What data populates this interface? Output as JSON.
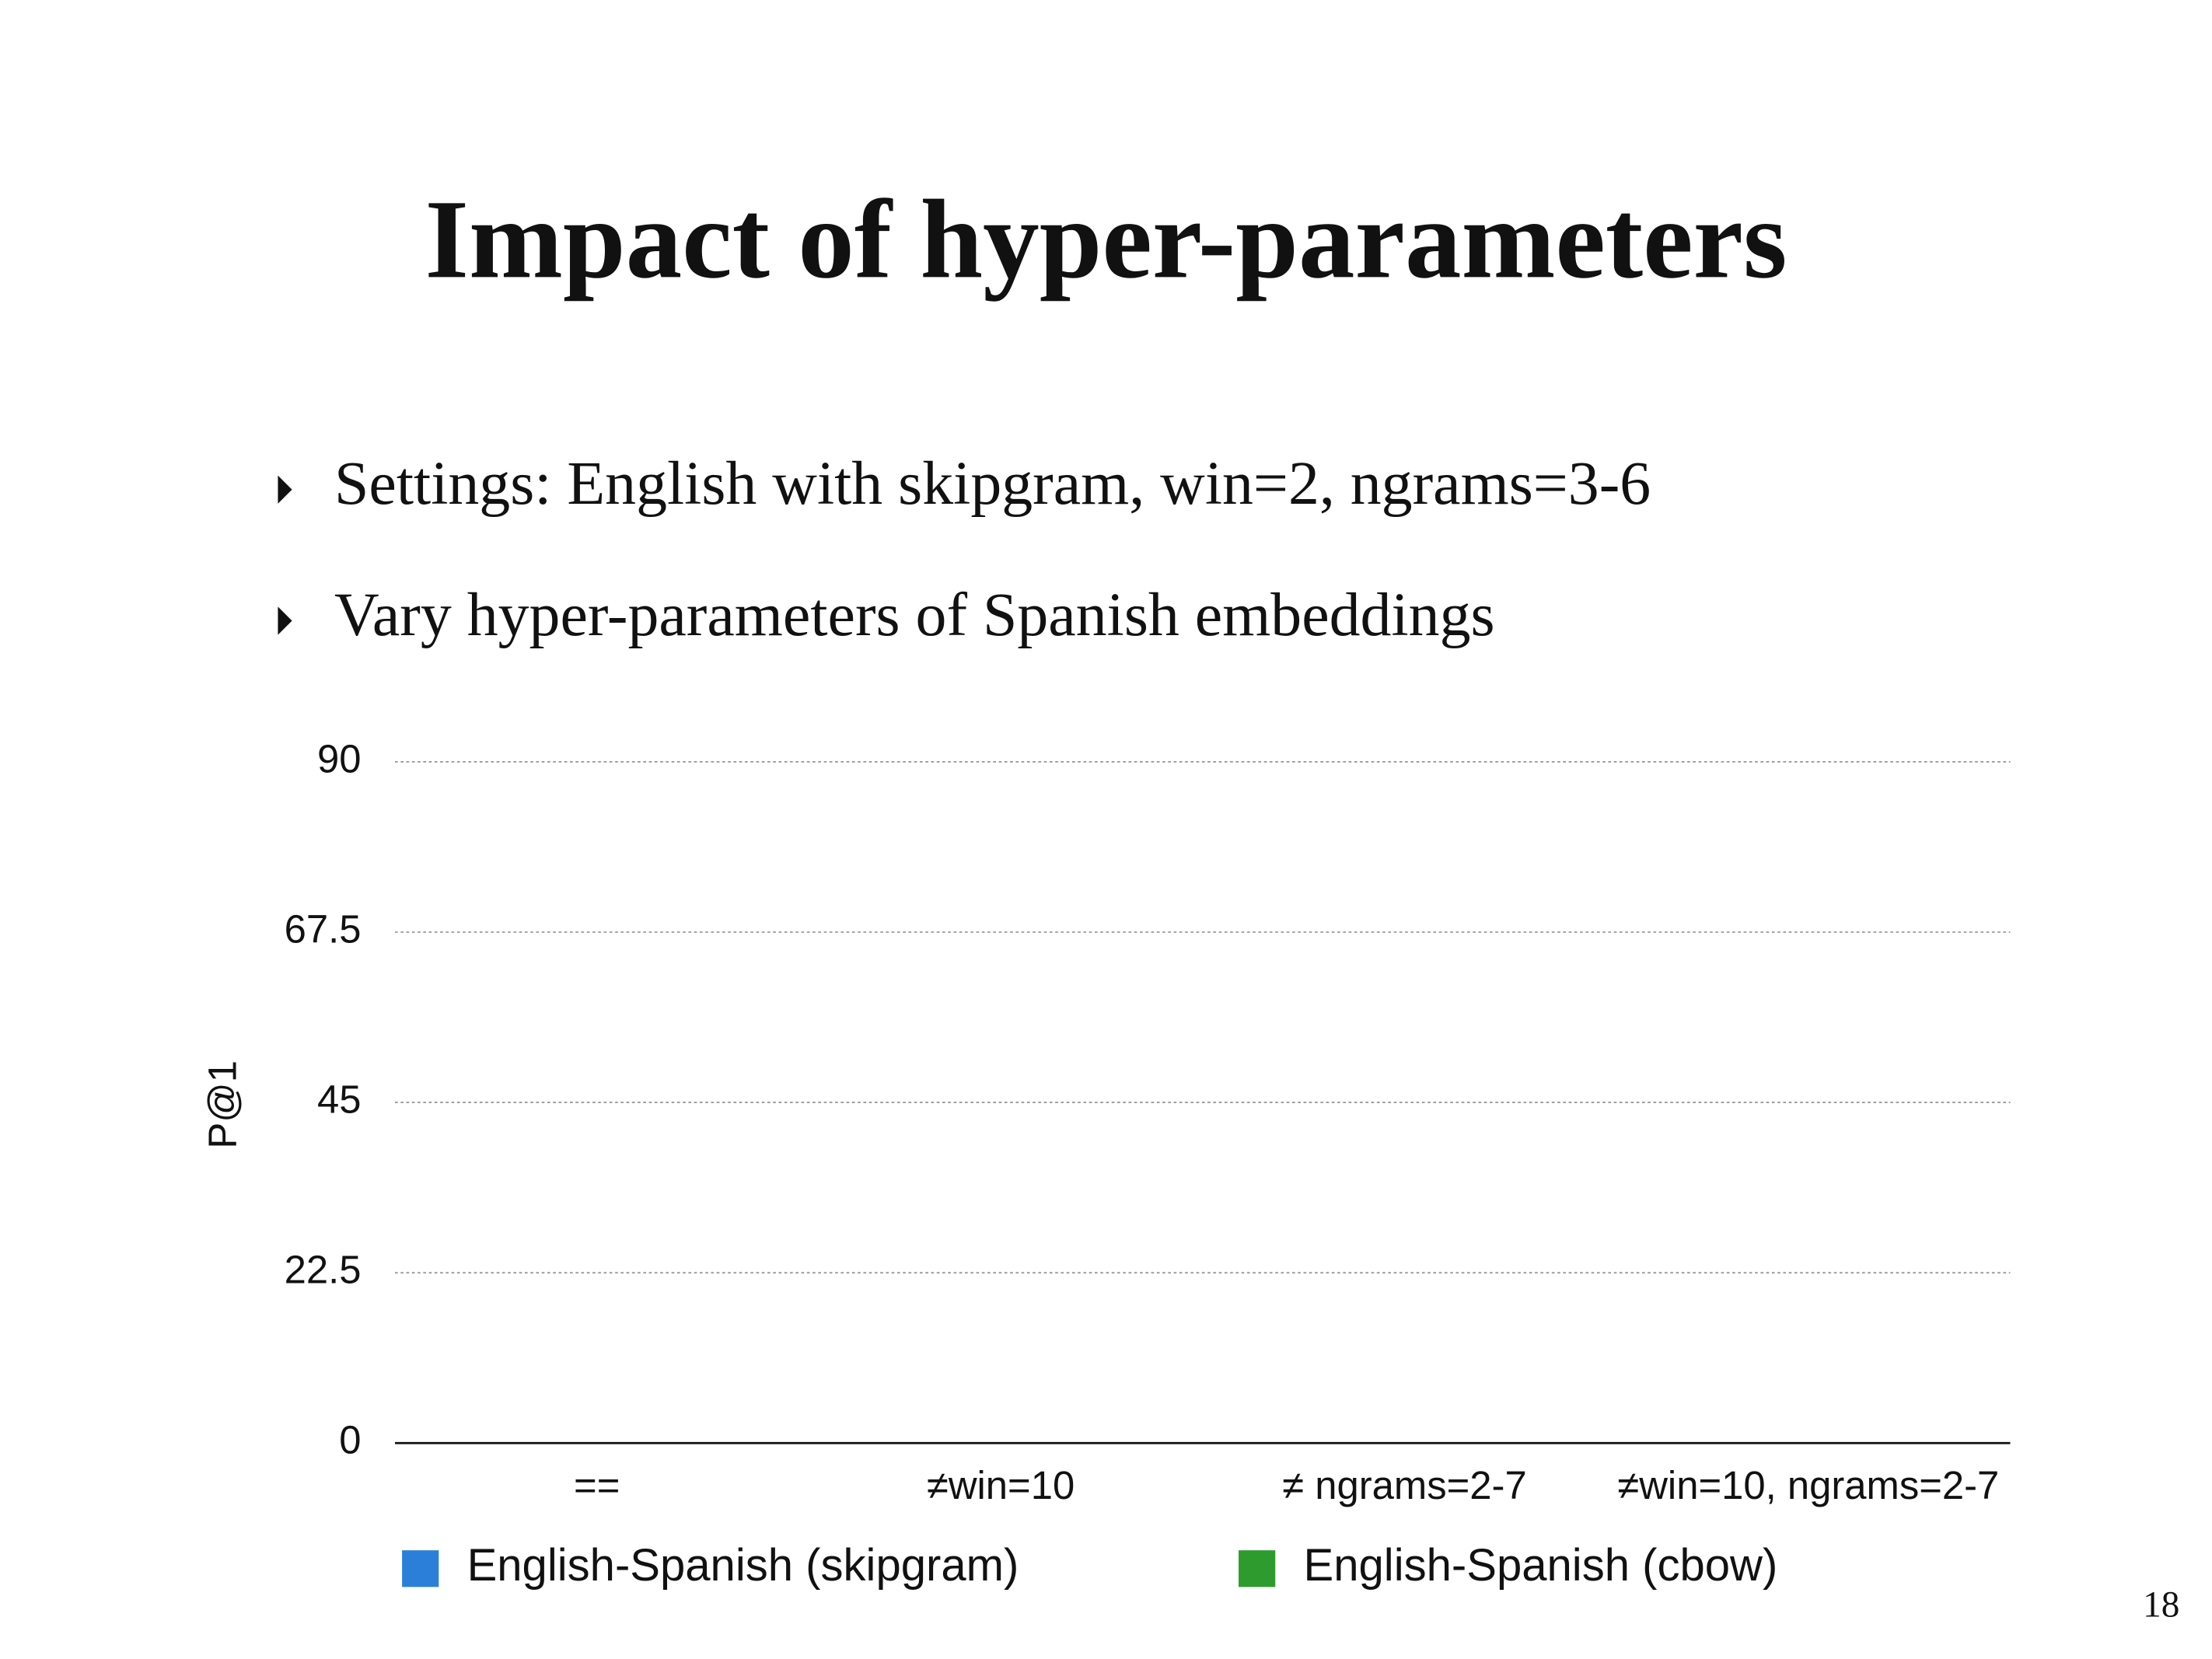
{
  "slide": {
    "title": "Impact of hyper-parameters",
    "bullets": [
      "Settings: English with skipgram, win=2, ngrams=3-6",
      "Vary hyper-parameters of Spanish embeddings"
    ],
    "page_number": "18"
  },
  "chart_data": {
    "type": "bar",
    "y_label": "P@1",
    "categories": [
      "==",
      "≠win=10",
      "≠ ngrams=2-7",
      "≠win=10, ngrams=2-7"
    ],
    "series": [
      {
        "name": "English-Spanish (skipgram)",
        "color": "#2b7fd9",
        "values": [
          null,
          null,
          null,
          null
        ]
      },
      {
        "name": "English-Spanish (cbow)",
        "color": "#2e9b2e",
        "values": [
          null,
          null,
          null,
          null
        ]
      }
    ],
    "ylim": [
      0,
      90
    ],
    "yticks": [
      0,
      22.5,
      45,
      67.5,
      90
    ],
    "grid": true,
    "legend": "bottom"
  }
}
